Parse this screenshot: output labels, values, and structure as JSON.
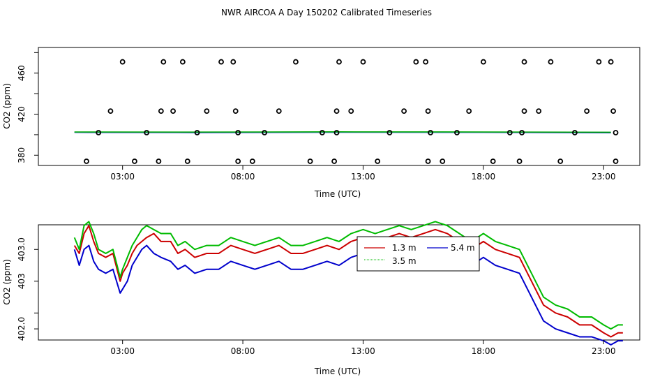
{
  "title": "NWR AIRCOA A  Day 150202  Calibrated Timeseries",
  "chart_data": [
    {
      "type": "scatter",
      "xlabel": "Time (UTC)",
      "ylabel": "CO2 (ppm)",
      "xlim": [
        -0.5,
        24.5
      ],
      "ylim": [
        370,
        485
      ],
      "x_ticks": [
        {
          "value": 3,
          "label": "03:00"
        },
        {
          "value": 8,
          "label": "08:00"
        },
        {
          "value": 13,
          "label": "13:00"
        },
        {
          "value": 18,
          "label": "18:00"
        },
        {
          "value": 23,
          "label": "23:00"
        }
      ],
      "y_ticks": [
        {
          "value": 380,
          "label": "380"
        },
        {
          "value": 420,
          "label": "420"
        },
        {
          "value": 460,
          "label": "460"
        }
      ],
      "y_minor_ticks": [
        400,
        440,
        480
      ],
      "points": [
        {
          "x": 1.5,
          "y": 364
        },
        {
          "x": 2.0,
          "y": 402
        },
        {
          "x": 2.5,
          "y": 423
        },
        {
          "x": 3.0,
          "y": 471
        },
        {
          "x": 3.5,
          "y": 364
        },
        {
          "x": 4.0,
          "y": 402
        },
        {
          "x": 4.5,
          "y": 364
        },
        {
          "x": 4.6,
          "y": 423
        },
        {
          "x": 4.7,
          "y": 471
        },
        {
          "x": 5.1,
          "y": 423
        },
        {
          "x": 5.5,
          "y": 471
        },
        {
          "x": 5.7,
          "y": 364
        },
        {
          "x": 6.1,
          "y": 402
        },
        {
          "x": 6.5,
          "y": 423
        },
        {
          "x": 7.1,
          "y": 471
        },
        {
          "x": 7.6,
          "y": 471
        },
        {
          "x": 7.7,
          "y": 423
        },
        {
          "x": 7.8,
          "y": 364
        },
        {
          "x": 7.8,
          "y": 402
        },
        {
          "x": 8.4,
          "y": 364
        },
        {
          "x": 8.9,
          "y": 402
        },
        {
          "x": 9.5,
          "y": 423
        },
        {
          "x": 10.2,
          "y": 471
        },
        {
          "x": 10.8,
          "y": 364
        },
        {
          "x": 11.3,
          "y": 402
        },
        {
          "x": 11.8,
          "y": 364
        },
        {
          "x": 11.9,
          "y": 402
        },
        {
          "x": 11.9,
          "y": 423
        },
        {
          "x": 12.0,
          "y": 471
        },
        {
          "x": 12.5,
          "y": 423
        },
        {
          "x": 13.0,
          "y": 471
        },
        {
          "x": 13.6,
          "y": 364
        },
        {
          "x": 14.1,
          "y": 402
        },
        {
          "x": 14.7,
          "y": 423
        },
        {
          "x": 15.2,
          "y": 471
        },
        {
          "x": 15.6,
          "y": 471
        },
        {
          "x": 15.7,
          "y": 423
        },
        {
          "x": 15.7,
          "y": 364
        },
        {
          "x": 15.8,
          "y": 402
        },
        {
          "x": 16.3,
          "y": 364
        },
        {
          "x": 16.9,
          "y": 402
        },
        {
          "x": 17.4,
          "y": 423
        },
        {
          "x": 18.0,
          "y": 471
        },
        {
          "x": 18.4,
          "y": 364
        },
        {
          "x": 19.1,
          "y": 402
        },
        {
          "x": 19.5,
          "y": 364
        },
        {
          "x": 19.6,
          "y": 402
        },
        {
          "x": 19.7,
          "y": 423
        },
        {
          "x": 19.7,
          "y": 471
        },
        {
          "x": 20.3,
          "y": 423
        },
        {
          "x": 20.8,
          "y": 471
        },
        {
          "x": 21.2,
          "y": 364
        },
        {
          "x": 21.8,
          "y": 402
        },
        {
          "x": 22.3,
          "y": 423
        },
        {
          "x": 22.8,
          "y": 471
        },
        {
          "x": 23.3,
          "y": 471
        },
        {
          "x": 23.4,
          "y": 423
        },
        {
          "x": 23.5,
          "y": 364
        },
        {
          "x": 23.5,
          "y": 402
        }
      ],
      "series": [
        {
          "color": "#0000cc",
          "x": [
            1.0,
            6.0,
            12.0,
            18.0,
            23.3
          ],
          "y": [
            402.2,
            402.0,
            402.3,
            402.2,
            401.8
          ]
        },
        {
          "color": "#22aa88",
          "x": [
            1.0,
            6.0,
            12.0,
            18.0,
            23.3
          ],
          "y": [
            402.5,
            402.4,
            402.6,
            402.5,
            402.2
          ]
        },
        {
          "color": "#00aa00",
          "x": [
            1.0,
            6.0,
            12.0,
            18.0,
            23.3
          ],
          "y": [
            402.7,
            402.6,
            402.8,
            402.7,
            402.4
          ]
        }
      ]
    },
    {
      "type": "line",
      "xlabel": "Time (UTC)",
      "ylabel": "CO2 (ppm)",
      "xlim": [
        -0.5,
        24.5
      ],
      "ylim": [
        401.86,
        403.31
      ],
      "x_ticks": [
        {
          "value": 3,
          "label": "03:00"
        },
        {
          "value": 8,
          "label": "08:00"
        },
        {
          "value": 13,
          "label": "13:00"
        },
        {
          "value": 18,
          "label": "18:00"
        },
        {
          "value": 23,
          "label": "23:00"
        }
      ],
      "y_ticks": [
        {
          "value": 402.0,
          "label": "402.0"
        },
        {
          "value": 402.6,
          "label": "403"
        },
        {
          "value": 403.0,
          "label": "403.0"
        }
      ],
      "y_minor_ticks": [
        402.2
      ],
      "legend": {
        "position": "top-center",
        "entries": [
          {
            "name": "1.3 m",
            "color": "#cc0000"
          },
          {
            "name": "5.4 m",
            "color": "#0000cc"
          },
          {
            "name": "3.5 m",
            "color": "#00bb00"
          }
        ]
      },
      "x": [
        1.0,
        1.2,
        1.4,
        1.6,
        1.8,
        2.0,
        2.3,
        2.6,
        2.9,
        3.0,
        3.2,
        3.4,
        3.6,
        3.8,
        4.0,
        4.3,
        4.6,
        5.0,
        5.3,
        5.6,
        6.0,
        6.5,
        7.0,
        7.5,
        8.0,
        8.5,
        9.0,
        9.5,
        10.0,
        10.5,
        11.0,
        11.5,
        12.0,
        12.5,
        13.0,
        13.5,
        14.0,
        14.5,
        15.0,
        15.5,
        16.0,
        16.5,
        17.0,
        17.5,
        18.0,
        18.5,
        19.0,
        19.5,
        20.0,
        20.5,
        21.0,
        21.5,
        22.0,
        22.5,
        23.0,
        23.3,
        23.6,
        23.8
      ],
      "series": [
        {
          "name": "1.3 m",
          "color": "#cc0000",
          "values": [
            403.05,
            402.95,
            403.2,
            403.3,
            403.1,
            402.95,
            402.9,
            402.95,
            402.6,
            402.7,
            402.8,
            402.95,
            403.05,
            403.1,
            403.15,
            403.2,
            403.1,
            403.1,
            402.95,
            403.0,
            402.9,
            402.95,
            402.95,
            403.05,
            403.0,
            402.95,
            403.0,
            403.05,
            402.95,
            402.95,
            403.0,
            403.05,
            403.0,
            403.1,
            403.15,
            403.1,
            403.15,
            403.2,
            403.15,
            403.2,
            403.25,
            403.2,
            403.1,
            403.0,
            403.1,
            403.0,
            402.95,
            402.9,
            402.6,
            402.3,
            402.2,
            402.15,
            402.05,
            402.05,
            401.95,
            401.9,
            401.95,
            401.95
          ]
        },
        {
          "name": "3.5 m",
          "color": "#00bb00",
          "values": [
            403.15,
            403.0,
            403.3,
            403.35,
            403.2,
            403.0,
            402.95,
            403.0,
            402.65,
            402.75,
            402.9,
            403.05,
            403.15,
            403.25,
            403.3,
            403.25,
            403.2,
            403.2,
            403.05,
            403.1,
            403.0,
            403.05,
            403.05,
            403.15,
            403.1,
            403.05,
            403.1,
            403.15,
            403.05,
            403.05,
            403.1,
            403.15,
            403.1,
            403.2,
            403.25,
            403.2,
            403.25,
            403.3,
            403.25,
            403.3,
            403.35,
            403.3,
            403.2,
            403.1,
            403.2,
            403.1,
            403.05,
            403.0,
            402.7,
            402.4,
            402.3,
            402.25,
            402.15,
            402.15,
            402.05,
            402.0,
            402.05,
            402.05
          ]
        },
        {
          "name": "5.4 m",
          "color": "#0000cc",
          "values": [
            403.0,
            402.8,
            403.0,
            403.05,
            402.85,
            402.75,
            402.7,
            402.75,
            402.45,
            402.5,
            402.6,
            402.8,
            402.9,
            403.0,
            403.05,
            402.95,
            402.9,
            402.85,
            402.75,
            402.8,
            402.7,
            402.75,
            402.75,
            402.85,
            402.8,
            402.75,
            402.8,
            402.85,
            402.75,
            402.75,
            402.8,
            402.85,
            402.8,
            402.9,
            402.95,
            402.9,
            402.95,
            403.0,
            402.95,
            403.0,
            403.05,
            403.0,
            402.9,
            402.8,
            402.9,
            402.8,
            402.75,
            402.7,
            402.4,
            402.1,
            402.0,
            401.95,
            401.9,
            401.9,
            401.85,
            401.8,
            401.85,
            401.85
          ]
        }
      ]
    }
  ]
}
